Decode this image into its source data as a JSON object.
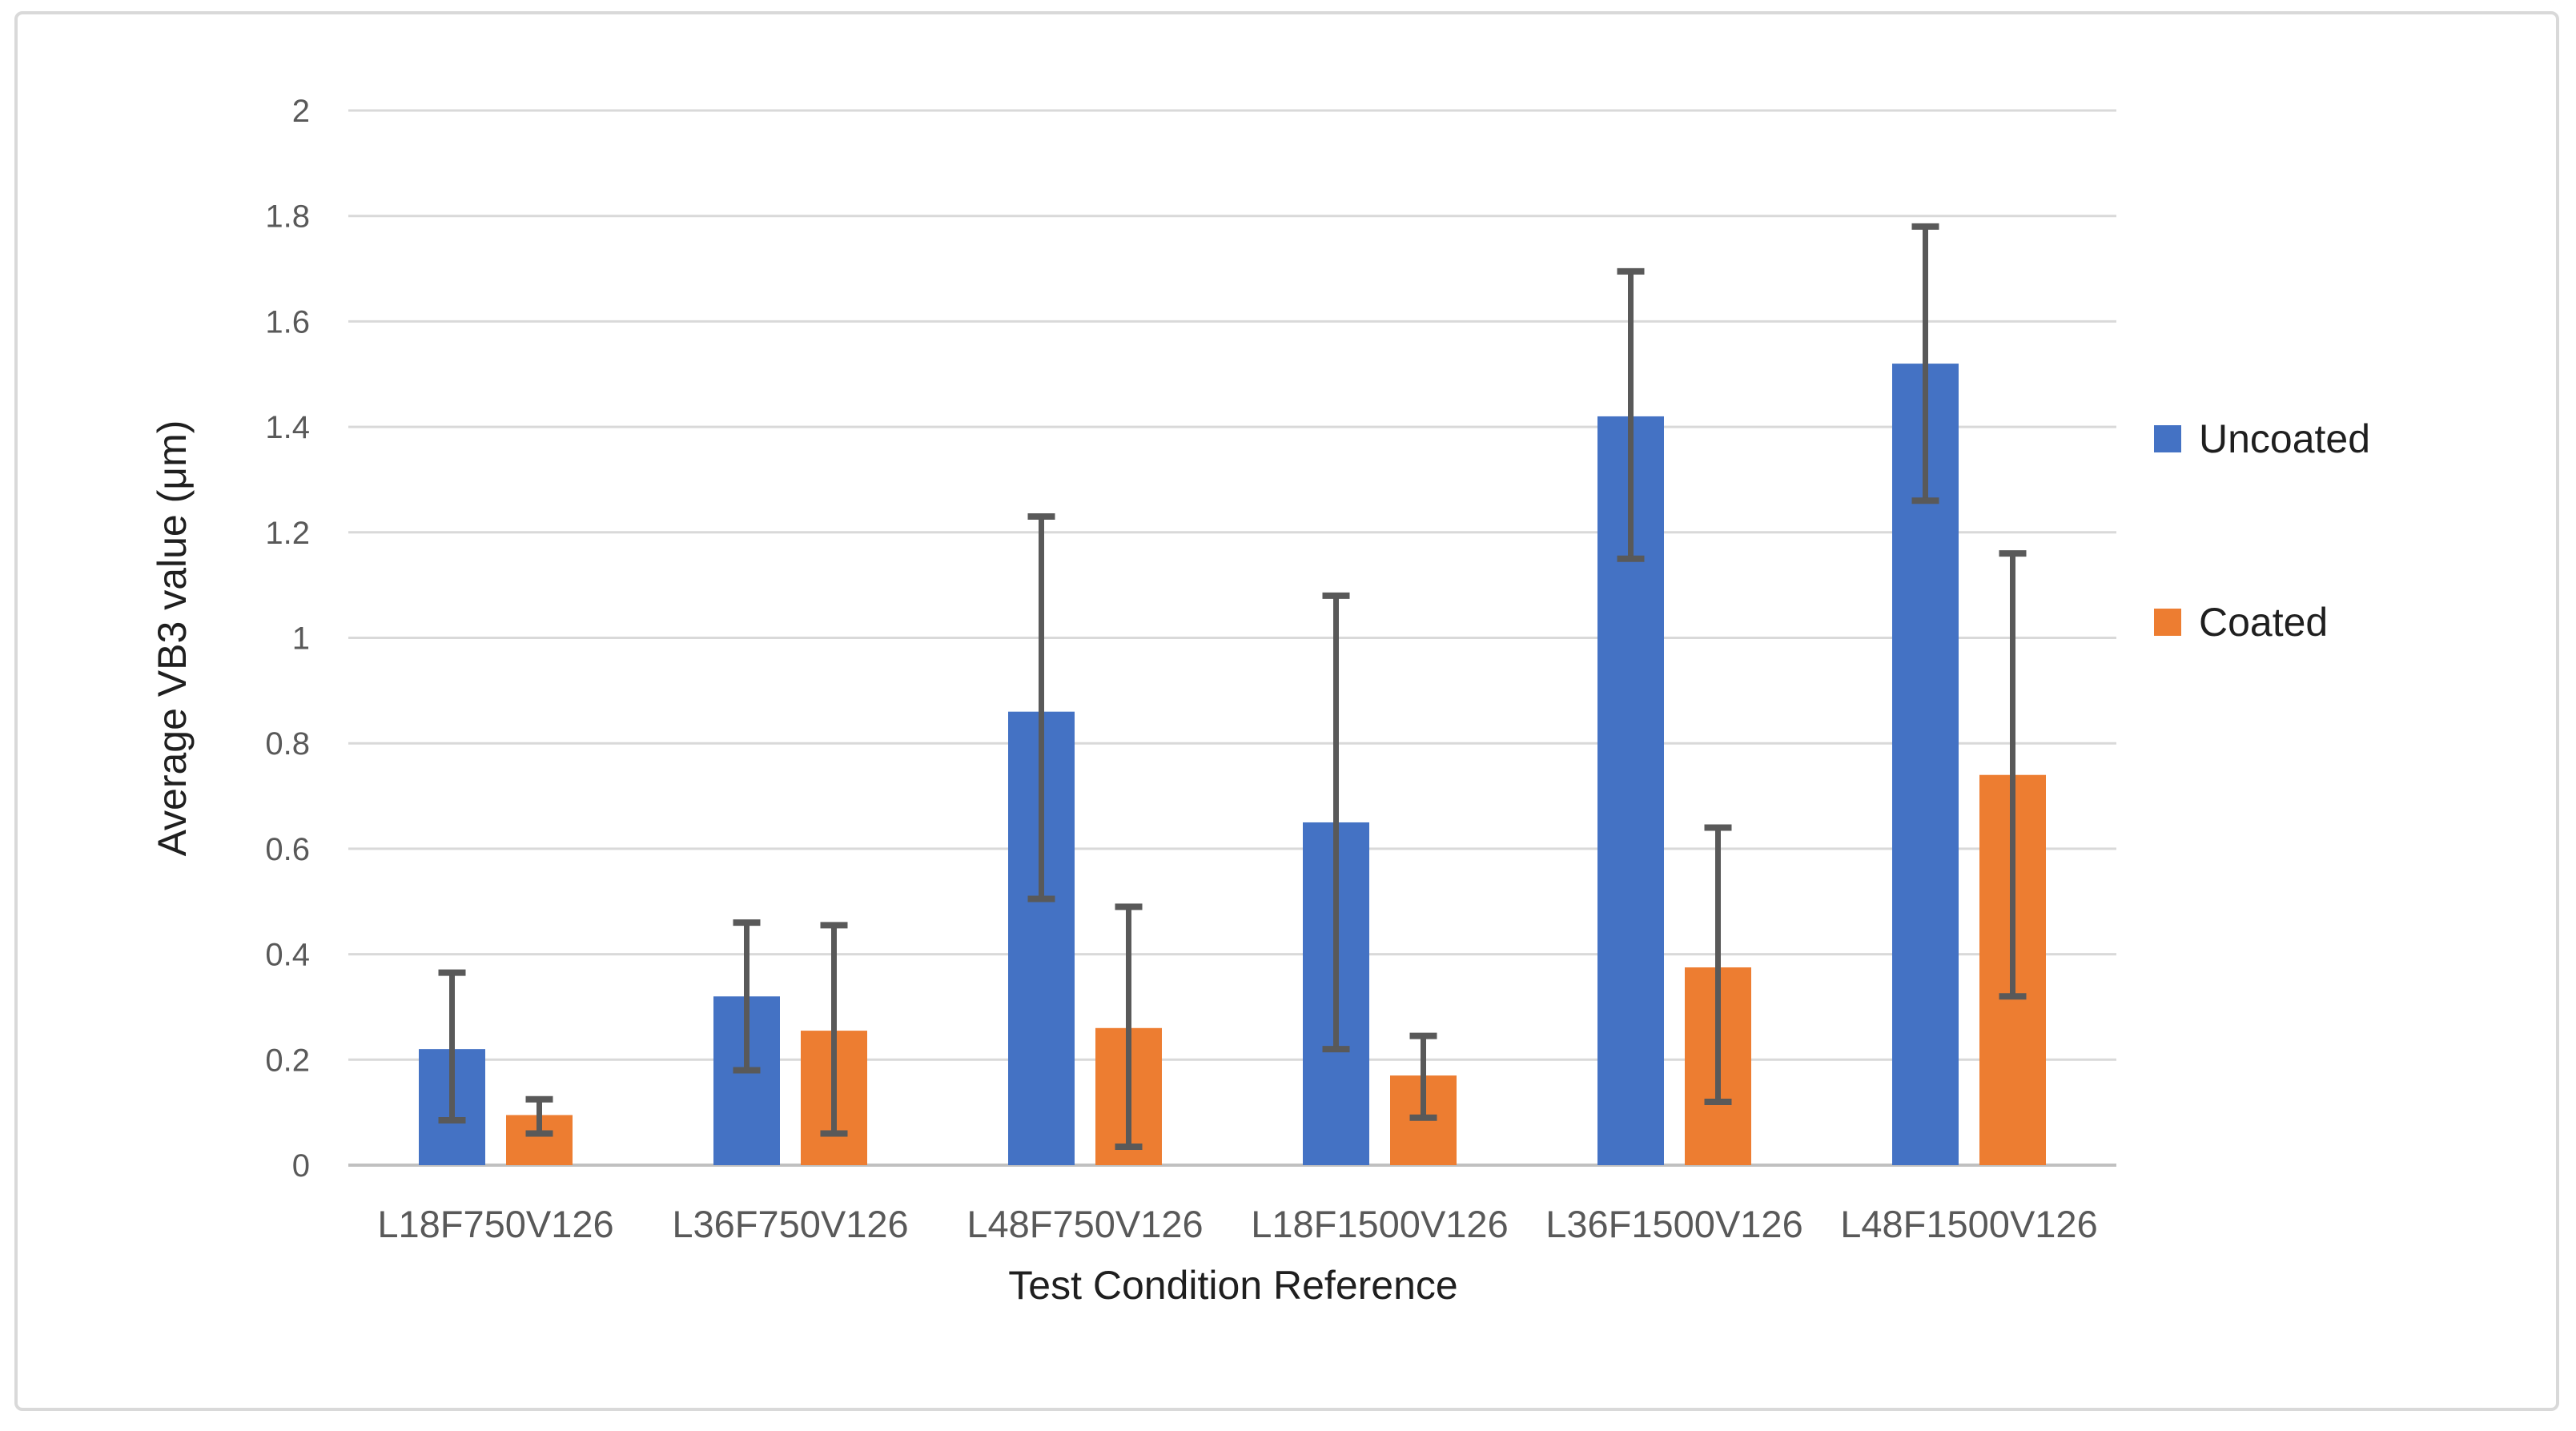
{
  "figure": {
    "background": "#FFFFFF",
    "border_color": "#D9D9D9"
  },
  "chart_data": {
    "type": "bar",
    "title": "",
    "xlabel": "Test Condition Reference",
    "ylabel": "Average VB3 value (μm)",
    "categories": [
      "L18F750V126",
      "L36F750V126",
      "L48F750V126",
      "L18F1500V126",
      "L36F1500V126",
      "L48F1500V126"
    ],
    "series": [
      {
        "name": "Uncoated",
        "color": "#4472C4",
        "values": [
          0.22,
          0.32,
          0.86,
          0.65,
          1.42,
          1.52
        ],
        "err_low": [
          0.085,
          0.18,
          0.505,
          0.22,
          1.15,
          1.26
        ],
        "err_high": [
          0.365,
          0.46,
          1.23,
          1.08,
          1.695,
          1.78
        ]
      },
      {
        "name": "Coated",
        "color": "#ED7D31",
        "values": [
          0.095,
          0.255,
          0.26,
          0.17,
          0.375,
          0.74
        ],
        "err_low": [
          0.06,
          0.06,
          0.035,
          0.09,
          0.12,
          0.32
        ],
        "err_high": [
          0.125,
          0.455,
          0.49,
          0.245,
          0.64,
          1.16
        ]
      }
    ],
    "ylim": [
      0,
      2
    ],
    "ytick_step": 0.2,
    "ytick_labels": [
      "0",
      "0.2",
      "0.4",
      "0.6",
      "0.8",
      "1",
      "1.2",
      "1.4",
      "1.6",
      "1.8",
      "2"
    ],
    "grid": true,
    "legend_position": "right",
    "styles": {
      "gridline_color": "#D9D9D9",
      "baseline_color": "#C0C0C0",
      "error_bar_color": "#595959",
      "tick_label_color": "#595959",
      "title_color": "#1F1F1F"
    }
  }
}
